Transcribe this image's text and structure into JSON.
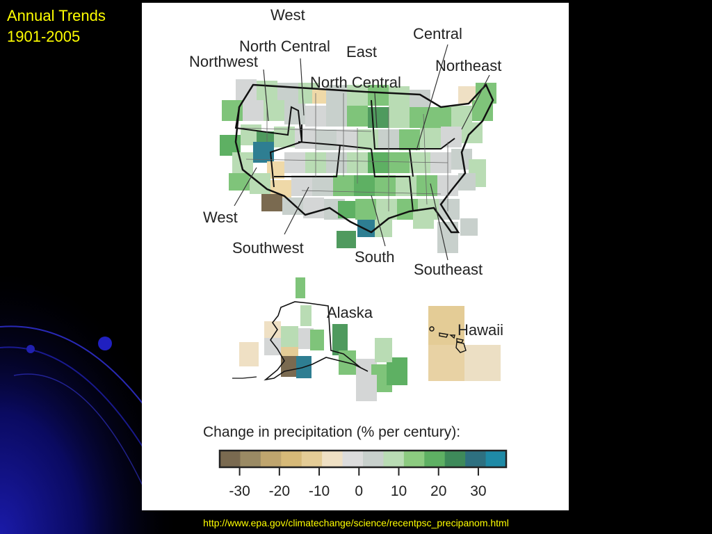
{
  "slide": {
    "title_line1": "Annual Trends",
    "title_line2": "1901-2005",
    "source_url": "http://www.epa.gov/climatechange/science/recentpsc_precipanom.html"
  },
  "map": {
    "region_labels": {
      "west_top": "West",
      "north_central_upper": "North Central",
      "east": "East",
      "central": "Central",
      "northwest": "Northwest",
      "north_central_lower": "North Central",
      "northeast": "Northeast",
      "west_bottom": "West",
      "southwest": "Southwest",
      "south": "South",
      "southeast": "Southeast",
      "alaska": "Alaska",
      "hawaii": "Hawaii"
    },
    "legend": {
      "title": "Change in precipitation (% per century):",
      "ticks": [
        "-30",
        "-20",
        "-10",
        "0",
        "10",
        "20",
        "30"
      ],
      "range": [
        -35,
        37
      ],
      "colors": [
        "#7a6a50",
        "#9a8a64",
        "#bfa56e",
        "#d6b978",
        "#e4cc96",
        "#efe0c4",
        "#dcdcdc",
        "#c8d0cc",
        "#b9dcb4",
        "#8ccb80",
        "#5eb063",
        "#3e8a5a",
        "#2e7080",
        "#1f8aa6"
      ]
    },
    "colors": {
      "dry_dark": "#7a6a50",
      "dry": "#e4cc96",
      "neutral": "#d4d6d6",
      "wet_light": "#b9dcb4",
      "wet": "#7fc47a",
      "wet_dark": "#4f9a5e",
      "wettest": "#2e7e92"
    }
  }
}
